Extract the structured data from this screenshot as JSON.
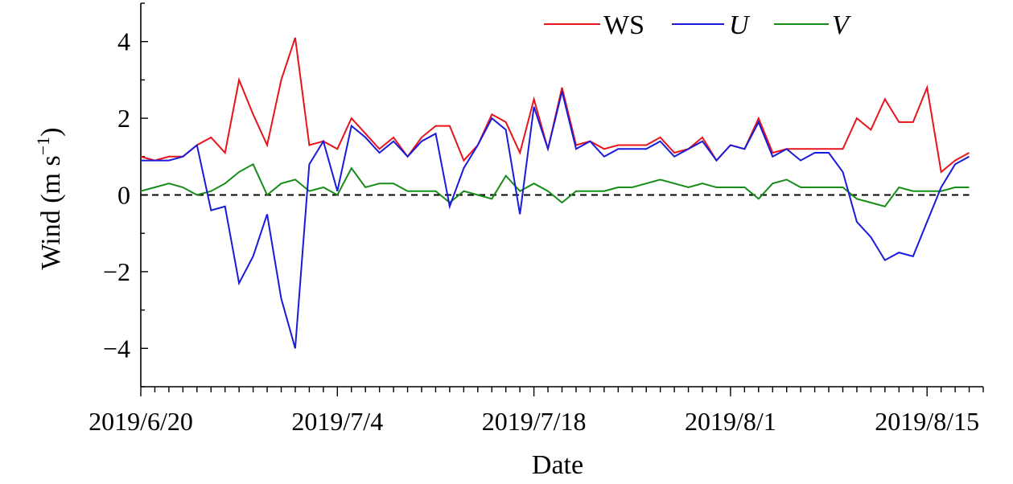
{
  "chart_data": {
    "type": "line",
    "xlabel": "Date",
    "ylabel": "Wind (m s",
    "ylabel_sup": "−1",
    "ylabel_close": ")",
    "ylim": [
      -5,
      5
    ],
    "yticks": [
      -4,
      -2,
      0,
      2,
      4
    ],
    "ytick_labels": [
      "−4",
      "−2",
      "0",
      "2",
      "4"
    ],
    "xlim": [
      "2019-06-20",
      "2019-08-19"
    ],
    "xticks": [
      "2019-06-20",
      "2019-07-04",
      "2019-07-18",
      "2019-08-01",
      "2019-08-15"
    ],
    "xtick_labels": [
      "2019/6/20",
      "2019/7/4",
      "2019/7/18",
      "2019/8/1",
      "2019/8/15"
    ],
    "reference_line": {
      "y": 0,
      "style": "dashed",
      "color": "#000000"
    },
    "grid": false,
    "legend_position": "top-right",
    "x": [
      "2019-06-20",
      "2019-06-21",
      "2019-06-22",
      "2019-06-23",
      "2019-06-24",
      "2019-06-25",
      "2019-06-26",
      "2019-06-27",
      "2019-06-28",
      "2019-06-29",
      "2019-06-30",
      "2019-07-01",
      "2019-07-02",
      "2019-07-03",
      "2019-07-04",
      "2019-07-05",
      "2019-07-06",
      "2019-07-07",
      "2019-07-08",
      "2019-07-09",
      "2019-07-10",
      "2019-07-11",
      "2019-07-12",
      "2019-07-13",
      "2019-07-14",
      "2019-07-15",
      "2019-07-16",
      "2019-07-17",
      "2019-07-18",
      "2019-07-19",
      "2019-07-20",
      "2019-07-21",
      "2019-07-22",
      "2019-07-23",
      "2019-07-24",
      "2019-07-25",
      "2019-07-26",
      "2019-07-27",
      "2019-07-28",
      "2019-07-29",
      "2019-07-30",
      "2019-07-31",
      "2019-08-01",
      "2019-08-02",
      "2019-08-03",
      "2019-08-04",
      "2019-08-05",
      "2019-08-06",
      "2019-08-07",
      "2019-08-08",
      "2019-08-09",
      "2019-08-10",
      "2019-08-11",
      "2019-08-12",
      "2019-08-13",
      "2019-08-14",
      "2019-08-15",
      "2019-08-16",
      "2019-08-17",
      "2019-08-18"
    ],
    "series": [
      {
        "name": "WS",
        "color": "#e8141c",
        "italic": false,
        "values": [
          1.0,
          0.9,
          1.0,
          1.0,
          1.3,
          1.5,
          1.1,
          3.0,
          2.1,
          1.3,
          3.0,
          4.1,
          1.3,
          1.4,
          1.2,
          2.0,
          1.6,
          1.2,
          1.5,
          1.0,
          1.5,
          1.8,
          1.8,
          0.9,
          1.3,
          2.1,
          1.9,
          1.1,
          2.5,
          1.2,
          2.8,
          1.3,
          1.4,
          1.2,
          1.3,
          1.3,
          1.3,
          1.5,
          1.1,
          1.2,
          1.5,
          0.9,
          1.3,
          1.2,
          2.0,
          1.1,
          1.2,
          1.2,
          1.2,
          1.2,
          1.2,
          2.0,
          1.7,
          2.5,
          1.9,
          1.9,
          2.8,
          0.6,
          0.9,
          1.1
        ]
      },
      {
        "name": "U",
        "color": "#1a1adc",
        "italic": true,
        "values": [
          0.9,
          0.9,
          0.9,
          1.0,
          1.3,
          -0.4,
          -0.3,
          -2.3,
          -1.6,
          -0.5,
          -2.7,
          -4.0,
          0.8,
          1.4,
          0.1,
          1.8,
          1.5,
          1.1,
          1.4,
          1.0,
          1.4,
          1.6,
          -0.3,
          0.7,
          1.3,
          2.0,
          1.7,
          -0.5,
          2.3,
          1.2,
          2.7,
          1.2,
          1.4,
          1.0,
          1.2,
          1.2,
          1.2,
          1.4,
          1.0,
          1.2,
          1.4,
          0.9,
          1.3,
          1.2,
          1.9,
          1.0,
          1.2,
          0.9,
          1.1,
          1.1,
          0.6,
          -0.7,
          -1.1,
          -1.7,
          -1.5,
          -1.6,
          -0.7,
          0.2,
          0.8,
          1.0
        ]
      },
      {
        "name": "V",
        "color": "#178c17",
        "italic": true,
        "values": [
          0.1,
          0.2,
          0.3,
          0.2,
          0.0,
          0.1,
          0.3,
          0.6,
          0.8,
          0.0,
          0.3,
          0.4,
          0.1,
          0.2,
          0.0,
          0.7,
          0.2,
          0.3,
          0.3,
          0.1,
          0.1,
          0.1,
          -0.2,
          0.1,
          0.0,
          -0.1,
          0.5,
          0.1,
          0.3,
          0.1,
          -0.2,
          0.1,
          0.1,
          0.1,
          0.2,
          0.2,
          0.3,
          0.4,
          0.3,
          0.2,
          0.3,
          0.2,
          0.2,
          0.2,
          -0.1,
          0.3,
          0.4,
          0.2,
          0.2,
          0.2,
          0.2,
          -0.1,
          -0.2,
          -0.3,
          0.2,
          0.1,
          0.1,
          0.1,
          0.2,
          0.2
        ]
      }
    ]
  }
}
